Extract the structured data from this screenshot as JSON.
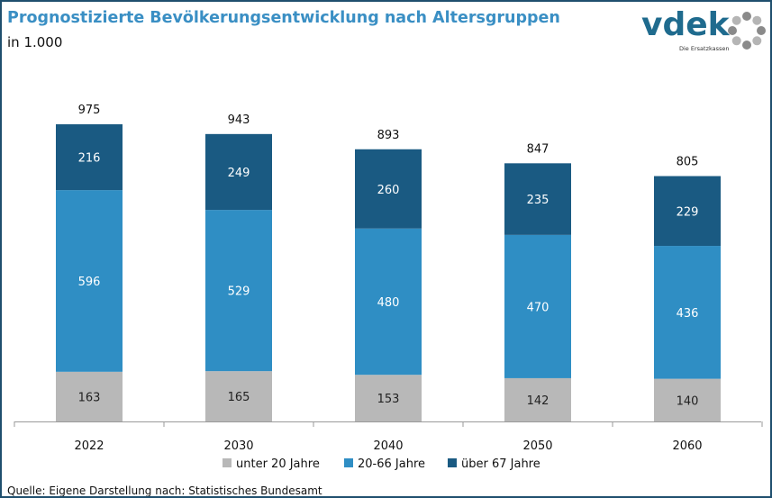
{
  "header": {
    "title": "Prognostizierte Bevölkerungsentwicklung nach Altersgruppen",
    "subtitle": "in 1.000"
  },
  "logo": {
    "brand": "vdek",
    "tagline": "Die Ersatzkassen",
    "color": "#1f6b8e",
    "icon": "dotted-ring-icon"
  },
  "footer": {
    "source": "Quelle: Eigene Darstellung nach: Statistisches Bundesamt"
  },
  "chart_data": {
    "type": "bar",
    "stacked": true,
    "title": "Prognostizierte Bevölkerungsentwicklung nach Altersgruppen",
    "subtitle": "in 1.000",
    "categories": [
      "2022",
      "2030",
      "2040",
      "2050",
      "2060"
    ],
    "totals": [
      "975",
      "943",
      "893",
      "847",
      "805"
    ],
    "series": [
      {
        "name": "unter 20 Jahre",
        "color": "#b8b8b8",
        "label_color": "#222222",
        "values": [
          163,
          165,
          153,
          142,
          140
        ]
      },
      {
        "name": "20-66 Jahre",
        "color": "#2f8ec4",
        "label_color": "#ffffff",
        "values": [
          596,
          529,
          480,
          470,
          436
        ]
      },
      {
        "name": "über 67 Jahre",
        "color": "#1a5a82",
        "label_color": "#ffffff",
        "values": [
          216,
          249,
          260,
          235,
          229
        ]
      }
    ],
    "legend_position": "bottom",
    "grid": false,
    "ylim": [
      0,
      1000
    ]
  }
}
